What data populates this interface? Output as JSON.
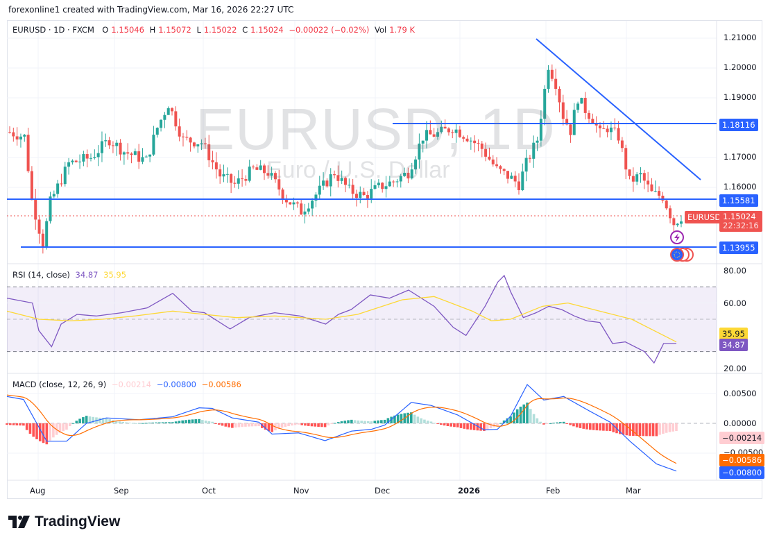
{
  "credit": "forexonline1 created with TradingView.com, Mar 16, 2026 22:27 UTC",
  "header": {
    "symbol": "EURUSD · 1D · FXCM",
    "o_label": "O",
    "o_value": "1.15046",
    "h_label": "H",
    "h_value": "1.15072",
    "l_label": "L",
    "l_value": "1.15022",
    "c_label": "C",
    "c_value": "1.15024",
    "change": "−0.00022 (−0.02%)",
    "vol_label": "Vol",
    "vol_value": "1.79 K"
  },
  "watermark": {
    "main": "EURUSD, 1D",
    "sub": "Euro / U.S. Dollar"
  },
  "colors": {
    "up": "#26a69a",
    "down": "#ef5350",
    "line_blue": "#2962ff",
    "rsi": "#7e57c2",
    "rsi_ma": "#fdd835",
    "macd": "#2962ff",
    "signal": "#ff6d00",
    "hist_up_strong": "#26a69a",
    "hist_up_weak": "#b2dfdb",
    "hist_down_strong": "#ff5252",
    "hist_down_weak": "#ffcdd2",
    "grid": "#f0f3fa"
  },
  "price_axis": {
    "ticks": [
      "1.21000",
      "1.20000",
      "1.19000",
      "1.17000",
      "1.16000"
    ],
    "lines": [
      {
        "value": "1.18116",
        "color": "#2962ff"
      },
      {
        "value": "1.15581",
        "color": "#2962ff"
      },
      {
        "value": "1.13955",
        "color": "#2962ff"
      }
    ],
    "current": {
      "symbol": "EURUSD",
      "price": "1.15024",
      "countdown": "22:32:16",
      "color": "#ef5350"
    }
  },
  "rsi": {
    "title": "RSI (14, close)",
    "value": "34.87",
    "ma_value": "35.95",
    "ticks": [
      "80.00",
      "60.00",
      "20.00"
    ]
  },
  "macd": {
    "title": "MACD (close, 12, 26, 9)",
    "hist_value": "−0.00214",
    "macd_value": "−0.00800",
    "signal_value": "−0.00586",
    "ticks": [
      "0.00500",
      "0.00000",
      "−0.00500"
    ]
  },
  "time_axis": [
    "Aug",
    "Sep",
    "Oct",
    "Nov",
    "Dec",
    "2026",
    "Feb",
    "Mar"
  ],
  "logo": {
    "text": "TradingView"
  },
  "chart_data": [
    {
      "type": "candlestick",
      "title": "EURUSD · 1D · FXCM",
      "subtitle": "Euro / U.S. Dollar",
      "x_range": [
        "late Jul 2025",
        "Mar 16, 2026"
      ],
      "ylim": [
        1.133,
        1.213
      ],
      "x_ticks": [
        "Aug",
        "Sep",
        "Oct",
        "Nov",
        "Dec",
        "2026",
        "Feb",
        "Mar"
      ],
      "y_ticks": [
        1.21,
        1.2,
        1.19,
        1.17,
        1.16
      ],
      "last": {
        "open": 1.15046,
        "high": 1.15072,
        "low": 1.15022,
        "close": 1.15024,
        "change": -0.00022,
        "change_pct": -0.02,
        "volume": "1.79K"
      },
      "horizontal_levels": [
        1.18116,
        1.15581,
        1.13955
      ],
      "trendline": {
        "from": {
          "date": "late Jan 2026",
          "price": 1.2095
        },
        "to": {
          "date": "mid Mar 2026",
          "price": 1.1625
        }
      },
      "approx_closes": {
        "Aug_start": 1.159,
        "Aug_low": 1.14,
        "Sep_mid": 1.176,
        "Sep_high": 1.192,
        "Oct_start": 1.173,
        "Nov_low": 1.151,
        "Dec_start": 1.161,
        "Dec_high": 1.18,
        "Jan_mid": 1.163,
        "Jan_high": 1.2095,
        "Feb_mid": 1.182,
        "Mar_start": 1.168,
        "Mar_low": 1.143,
        "last": 1.15024
      }
    },
    {
      "type": "line",
      "title": "RSI (14, close)",
      "series": [
        {
          "name": "RSI",
          "last": 34.87
        },
        {
          "name": "RSI-based MA",
          "last": 35.95
        }
      ],
      "bands": [
        70,
        50,
        30
      ],
      "ylim": [
        20,
        80
      ],
      "notable": {
        "Aug_low": 32,
        "Jan_high": 77,
        "Mar_low": 24
      }
    },
    {
      "type": "bar+line",
      "title": "MACD (close, 12, 26, 9)",
      "series": [
        {
          "name": "Histogram",
          "last": -0.00214
        },
        {
          "name": "MACD",
          "last": -0.008
        },
        {
          "name": "Signal",
          "last": -0.00586
        }
      ],
      "ylim": [
        -0.0085,
        0.0065
      ],
      "y_ticks": [
        0.005,
        0.0,
        -0.005
      ]
    }
  ]
}
